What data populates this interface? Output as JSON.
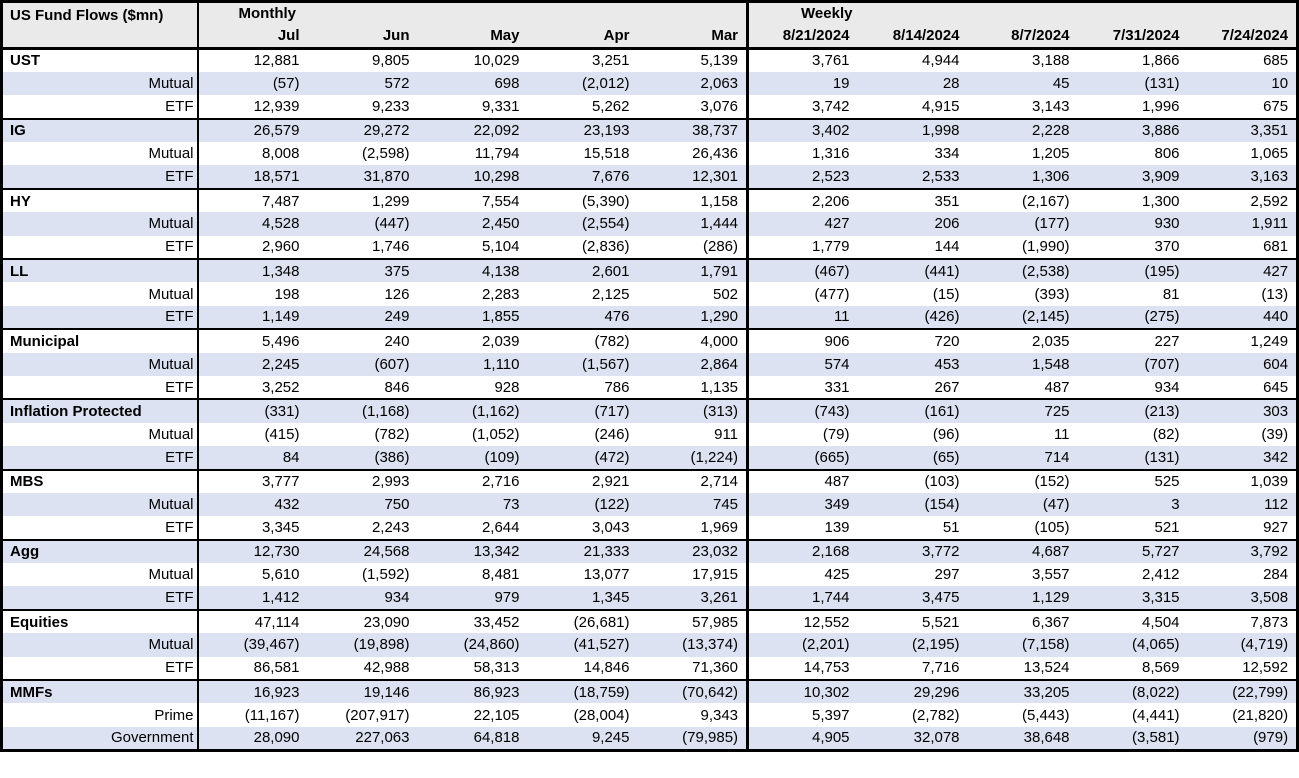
{
  "colors": {
    "stripe": "#dce2f1",
    "header_bg": "#eaeaea",
    "border": "#000000"
  },
  "header": {
    "title": "US Fund Flows ($mn)"
  },
  "chart_data": {
    "type": "table",
    "title": "US Fund Flows ($mn)",
    "column_bands": [
      {
        "label": "Monthly",
        "columns": [
          "Jul",
          "Jun",
          "May",
          "Apr",
          "Mar"
        ]
      },
      {
        "label": "Weekly",
        "columns": [
          "8/21/2024",
          "8/14/2024",
          "8/7/2024",
          "7/31/2024",
          "7/24/2024"
        ]
      }
    ],
    "groups": [
      {
        "name": "UST",
        "rows": [
          {
            "label": "UST",
            "type": "group",
            "cells": [
              "12,881",
              "9,805",
              "10,029",
              "3,251",
              "5,139",
              "3,761",
              "4,944",
              "3,188",
              "1,866",
              "685"
            ]
          },
          {
            "label": "Mutual",
            "type": "sub",
            "cells": [
              "(57)",
              "572",
              "698",
              "(2,012)",
              "2,063",
              "19",
              "28",
              "45",
              "(131)",
              "10"
            ]
          },
          {
            "label": "ETF",
            "type": "sub",
            "cells": [
              "12,939",
              "9,233",
              "9,331",
              "5,262",
              "3,076",
              "3,742",
              "4,915",
              "3,143",
              "1,996",
              "675"
            ]
          }
        ]
      },
      {
        "name": "IG",
        "rows": [
          {
            "label": "IG",
            "type": "group",
            "cells": [
              "26,579",
              "29,272",
              "22,092",
              "23,193",
              "38,737",
              "3,402",
              "1,998",
              "2,228",
              "3,886",
              "3,351"
            ]
          },
          {
            "label": "Mutual",
            "type": "sub",
            "cells": [
              "8,008",
              "(2,598)",
              "11,794",
              "15,518",
              "26,436",
              "1,316",
              "334",
              "1,205",
              "806",
              "1,065"
            ]
          },
          {
            "label": "ETF",
            "type": "sub",
            "cells": [
              "18,571",
              "31,870",
              "10,298",
              "7,676",
              "12,301",
              "2,523",
              "2,533",
              "1,306",
              "3,909",
              "3,163"
            ]
          }
        ]
      },
      {
        "name": "HY",
        "rows": [
          {
            "label": "HY",
            "type": "group",
            "cells": [
              "7,487",
              "1,299",
              "7,554",
              "(5,390)",
              "1,158",
              "2,206",
              "351",
              "(2,167)",
              "1,300",
              "2,592"
            ]
          },
          {
            "label": "Mutual",
            "type": "sub",
            "cells": [
              "4,528",
              "(447)",
              "2,450",
              "(2,554)",
              "1,444",
              "427",
              "206",
              "(177)",
              "930",
              "1,911"
            ]
          },
          {
            "label": "ETF",
            "type": "sub",
            "cells": [
              "2,960",
              "1,746",
              "5,104",
              "(2,836)",
              "(286)",
              "1,779",
              "144",
              "(1,990)",
              "370",
              "681"
            ]
          }
        ]
      },
      {
        "name": "LL",
        "rows": [
          {
            "label": "LL",
            "type": "group",
            "cells": [
              "1,348",
              "375",
              "4,138",
              "2,601",
              "1,791",
              "(467)",
              "(441)",
              "(2,538)",
              "(195)",
              "427"
            ]
          },
          {
            "label": "Mutual",
            "type": "sub",
            "cells": [
              "198",
              "126",
              "2,283",
              "2,125",
              "502",
              "(477)",
              "(15)",
              "(393)",
              "81",
              "(13)"
            ]
          },
          {
            "label": "ETF",
            "type": "sub",
            "cells": [
              "1,149",
              "249",
              "1,855",
              "476",
              "1,290",
              "11",
              "(426)",
              "(2,145)",
              "(275)",
              "440"
            ]
          }
        ]
      },
      {
        "name": "Municipal",
        "rows": [
          {
            "label": "Municipal",
            "type": "group",
            "cells": [
              "5,496",
              "240",
              "2,039",
              "(782)",
              "4,000",
              "906",
              "720",
              "2,035",
              "227",
              "1,249"
            ]
          },
          {
            "label": "Mutual",
            "type": "sub",
            "cells": [
              "2,245",
              "(607)",
              "1,110",
              "(1,567)",
              "2,864",
              "574",
              "453",
              "1,548",
              "(707)",
              "604"
            ]
          },
          {
            "label": "ETF",
            "type": "sub",
            "cells": [
              "3,252",
              "846",
              "928",
              "786",
              "1,135",
              "331",
              "267",
              "487",
              "934",
              "645"
            ]
          }
        ]
      },
      {
        "name": "Inflation Protected",
        "rows": [
          {
            "label": "Inflation Protected",
            "type": "group",
            "cells": [
              "(331)",
              "(1,168)",
              "(1,162)",
              "(717)",
              "(313)",
              "(743)",
              "(161)",
              "725",
              "(213)",
              "303"
            ]
          },
          {
            "label": "Mutual",
            "type": "sub",
            "cells": [
              "(415)",
              "(782)",
              "(1,052)",
              "(246)",
              "911",
              "(79)",
              "(96)",
              "11",
              "(82)",
              "(39)"
            ]
          },
          {
            "label": "ETF",
            "type": "sub",
            "cells": [
              "84",
              "(386)",
              "(109)",
              "(472)",
              "(1,224)",
              "(665)",
              "(65)",
              "714",
              "(131)",
              "342"
            ]
          }
        ]
      },
      {
        "name": "MBS",
        "rows": [
          {
            "label": "MBS",
            "type": "group",
            "cells": [
              "3,777",
              "2,993",
              "2,716",
              "2,921",
              "2,714",
              "487",
              "(103)",
              "(152)",
              "525",
              "1,039"
            ]
          },
          {
            "label": "Mutual",
            "type": "sub",
            "cells": [
              "432",
              "750",
              "73",
              "(122)",
              "745",
              "349",
              "(154)",
              "(47)",
              "3",
              "112"
            ]
          },
          {
            "label": "ETF",
            "type": "sub",
            "cells": [
              "3,345",
              "2,243",
              "2,644",
              "3,043",
              "1,969",
              "139",
              "51",
              "(105)",
              "521",
              "927"
            ]
          }
        ]
      },
      {
        "name": "Agg",
        "rows": [
          {
            "label": "Agg",
            "type": "group",
            "cells": [
              "12,730",
              "24,568",
              "13,342",
              "21,333",
              "23,032",
              "2,168",
              "3,772",
              "4,687",
              "5,727",
              "3,792"
            ]
          },
          {
            "label": "Mutual",
            "type": "sub",
            "cells": [
              "5,610",
              "(1,592)",
              "8,481",
              "13,077",
              "17,915",
              "425",
              "297",
              "3,557",
              "2,412",
              "284"
            ]
          },
          {
            "label": "ETF",
            "type": "sub",
            "cells": [
              "1,412",
              "934",
              "979",
              "1,345",
              "3,261",
              "1,744",
              "3,475",
              "1,129",
              "3,315",
              "3,508"
            ]
          }
        ]
      },
      {
        "name": "Equities",
        "rows": [
          {
            "label": "Equities",
            "type": "group",
            "cells": [
              "47,114",
              "23,090",
              "33,452",
              "(26,681)",
              "57,985",
              "12,552",
              "5,521",
              "6,367",
              "4,504",
              "7,873"
            ]
          },
          {
            "label": "Mutual",
            "type": "sub",
            "cells": [
              "(39,467)",
              "(19,898)",
              "(24,860)",
              "(41,527)",
              "(13,374)",
              "(2,201)",
              "(2,195)",
              "(7,158)",
              "(4,065)",
              "(4,719)"
            ]
          },
          {
            "label": "ETF",
            "type": "sub",
            "cells": [
              "86,581",
              "42,988",
              "58,313",
              "14,846",
              "71,360",
              "14,753",
              "7,716",
              "13,524",
              "8,569",
              "12,592"
            ]
          }
        ]
      },
      {
        "name": "MMFs",
        "rows": [
          {
            "label": "MMFs",
            "type": "group",
            "cells": [
              "16,923",
              "19,146",
              "86,923",
              "(18,759)",
              "(70,642)",
              "10,302",
              "29,296",
              "33,205",
              "(8,022)",
              "(22,799)"
            ]
          },
          {
            "label": "Prime",
            "type": "sub",
            "cells": [
              "(11,167)",
              "(207,917)",
              "22,105",
              "(28,004)",
              "9,343",
              "5,397",
              "(2,782)",
              "(5,443)",
              "(4,441)",
              "(21,820)"
            ]
          },
          {
            "label": "Government",
            "type": "sub",
            "cells": [
              "28,090",
              "227,063",
              "64,818",
              "9,245",
              "(79,985)",
              "4,905",
              "32,078",
              "38,648",
              "(3,581)",
              "(979)"
            ]
          }
        ]
      }
    ]
  }
}
